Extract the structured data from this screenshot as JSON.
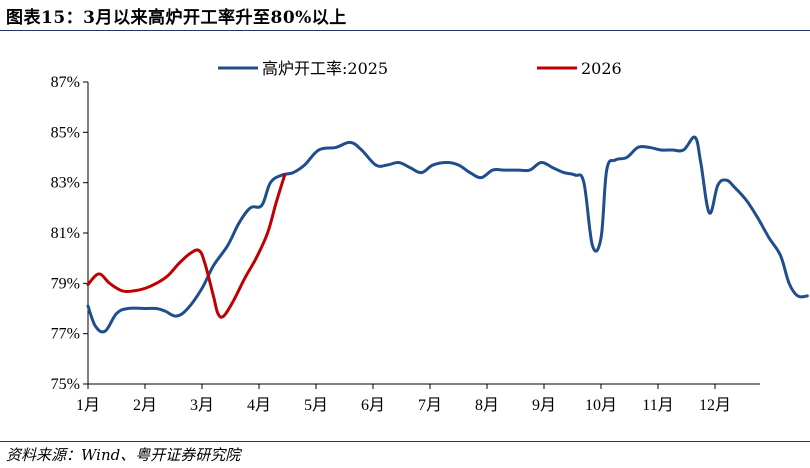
{
  "figure": {
    "title": "图表15：3月以来高炉开工率升至80%以上",
    "source": "资料来源：Wind、粤开证券研究院"
  },
  "chart_data": {
    "type": "line",
    "ylim": [
      75,
      87
    ],
    "yticks": [
      "75%",
      "77%",
      "79%",
      "81%",
      "83%",
      "85%",
      "87%"
    ],
    "ytick_values": [
      75,
      77,
      79,
      81,
      83,
      85,
      87
    ],
    "categories": [
      "1月",
      "2月",
      "3月",
      "4月",
      "5月",
      "6月",
      "7月",
      "8月",
      "9月",
      "10月",
      "11月",
      "12月"
    ],
    "x_unit": "month",
    "legend_position": "top",
    "series": [
      {
        "name": "高炉开工率:2025",
        "color": "#1f4e8c",
        "points": [
          [
            0.0,
            78.1
          ],
          [
            0.13,
            77.3
          ],
          [
            0.3,
            77.1
          ],
          [
            0.5,
            77.8
          ],
          [
            0.7,
            78.0
          ],
          [
            1.0,
            78.0
          ],
          [
            1.2,
            78.0
          ],
          [
            1.35,
            77.9
          ],
          [
            1.55,
            77.7
          ],
          [
            1.75,
            78.0
          ],
          [
            2.0,
            78.8
          ],
          [
            2.2,
            79.7
          ],
          [
            2.45,
            80.5
          ],
          [
            2.65,
            81.4
          ],
          [
            2.85,
            82.0
          ],
          [
            3.05,
            82.1
          ],
          [
            3.2,
            83.0
          ],
          [
            3.4,
            83.3
          ],
          [
            3.6,
            83.4
          ],
          [
            3.8,
            83.7
          ],
          [
            4.05,
            84.3
          ],
          [
            4.35,
            84.4
          ],
          [
            4.6,
            84.6
          ],
          [
            4.8,
            84.3
          ],
          [
            5.05,
            83.7
          ],
          [
            5.25,
            83.7
          ],
          [
            5.45,
            83.8
          ],
          [
            5.65,
            83.6
          ],
          [
            5.85,
            83.4
          ],
          [
            6.05,
            83.7
          ],
          [
            6.3,
            83.8
          ],
          [
            6.5,
            83.7
          ],
          [
            6.7,
            83.4
          ],
          [
            6.9,
            83.2
          ],
          [
            7.1,
            83.5
          ],
          [
            7.3,
            83.5
          ],
          [
            7.55,
            83.5
          ],
          [
            7.75,
            83.5
          ],
          [
            7.95,
            83.8
          ],
          [
            8.15,
            83.6
          ],
          [
            8.35,
            83.4
          ],
          [
            8.55,
            83.3
          ],
          [
            8.7,
            83.0
          ],
          [
            8.85,
            80.5
          ],
          [
            9.0,
            80.8
          ],
          [
            9.1,
            83.5
          ],
          [
            9.25,
            83.9
          ],
          [
            9.45,
            84.0
          ],
          [
            9.65,
            84.4
          ],
          [
            9.85,
            84.4
          ],
          [
            10.05,
            84.3
          ],
          [
            10.25,
            84.3
          ],
          [
            10.45,
            84.3
          ],
          [
            10.65,
            84.8
          ],
          [
            10.75,
            83.8
          ],
          [
            10.9,
            81.8
          ],
          [
            11.05,
            82.9
          ],
          [
            11.2,
            83.1
          ],
          [
            11.35,
            82.8
          ],
          [
            11.55,
            82.3
          ],
          [
            11.75,
            81.6
          ],
          [
            11.95,
            80.8
          ],
          [
            12.15,
            80.1
          ],
          [
            12.3,
            79.0
          ],
          [
            12.45,
            78.5
          ],
          [
            12.62,
            78.5
          ]
        ]
      },
      {
        "name": "2026",
        "color": "#c00000",
        "points": [
          [
            0.0,
            78.95
          ],
          [
            0.13,
            79.3
          ],
          [
            0.23,
            79.35
          ],
          [
            0.38,
            79.0
          ],
          [
            0.6,
            78.7
          ],
          [
            0.8,
            78.7
          ],
          [
            1.0,
            78.8
          ],
          [
            1.2,
            79.0
          ],
          [
            1.4,
            79.3
          ],
          [
            1.6,
            79.8
          ],
          [
            1.8,
            80.2
          ],
          [
            1.95,
            80.3
          ],
          [
            2.05,
            79.8
          ],
          [
            2.2,
            78.5
          ],
          [
            2.28,
            77.8
          ],
          [
            2.38,
            77.7
          ],
          [
            2.55,
            78.3
          ],
          [
            2.75,
            79.2
          ],
          [
            2.95,
            80.0
          ],
          [
            3.15,
            81.0
          ],
          [
            3.3,
            82.2
          ],
          [
            3.45,
            83.3
          ]
        ]
      }
    ]
  }
}
